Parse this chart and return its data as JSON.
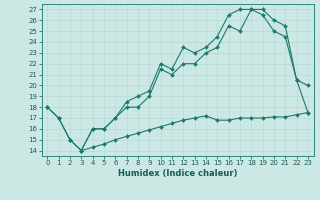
{
  "xlabel": "Humidex (Indice chaleur)",
  "bg_color": "#cbe8e5",
  "line_color": "#1a7a6e",
  "grid_color": "#b8dbd8",
  "xlim": [
    -0.5,
    23.5
  ],
  "ylim": [
    13.5,
    27.5
  ],
  "xticks": [
    0,
    1,
    2,
    3,
    4,
    5,
    6,
    7,
    8,
    9,
    10,
    11,
    12,
    13,
    14,
    15,
    16,
    17,
    18,
    19,
    20,
    21,
    22,
    23
  ],
  "yticks": [
    14,
    15,
    16,
    17,
    18,
    19,
    20,
    21,
    22,
    23,
    24,
    25,
    26,
    27
  ],
  "line1_x": [
    0,
    1,
    2,
    3,
    4,
    5,
    6,
    7,
    8,
    9,
    10,
    11,
    12,
    13,
    14,
    15,
    16,
    17,
    18,
    19,
    20,
    21,
    22,
    23
  ],
  "line1_y": [
    18,
    17,
    15,
    14,
    16,
    16,
    17,
    18.5,
    19,
    19.5,
    22,
    21.5,
    23.5,
    23,
    23.5,
    24.5,
    26.5,
    27,
    27,
    26.5,
    25,
    24.5,
    20.5,
    17.5
  ],
  "line2_x": [
    0,
    1,
    2,
    3,
    4,
    5,
    6,
    7,
    8,
    9,
    10,
    11,
    12,
    13,
    14,
    15,
    16,
    17,
    18,
    19,
    20,
    21,
    22,
    23
  ],
  "line2_y": [
    18,
    17,
    15,
    14,
    16,
    16,
    17,
    18,
    18,
    19,
    21.5,
    21,
    22,
    22,
    23,
    23.5,
    25.5,
    25,
    27,
    27,
    26,
    25.5,
    20.5,
    20
  ],
  "line3_x": [
    3,
    4,
    5,
    6,
    7,
    8,
    9,
    10,
    11,
    12,
    13,
    14,
    15,
    16,
    17,
    18,
    19,
    20,
    21,
    22,
    23
  ],
  "line3_y": [
    14,
    14.3,
    14.6,
    15.0,
    15.3,
    15.6,
    15.9,
    16.2,
    16.5,
    16.8,
    17.0,
    17.2,
    16.8,
    16.8,
    17.0,
    17.0,
    17.0,
    17.1,
    17.1,
    17.3,
    17.5
  ]
}
